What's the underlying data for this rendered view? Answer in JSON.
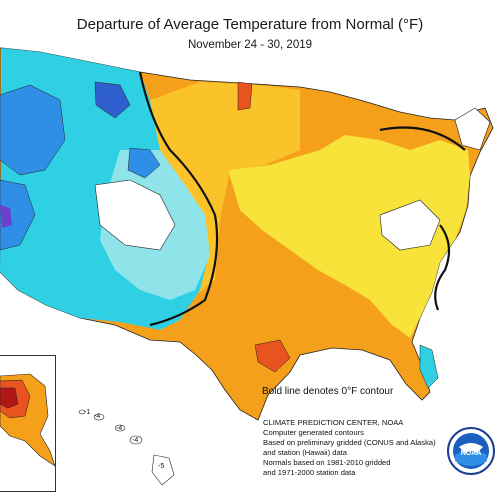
{
  "header": {
    "title": "Departure of Average Temperature from Normal (°F)",
    "date_range": "November 24 - 30, 2019"
  },
  "map": {
    "note": "Bold line denotes 0°F contour",
    "colors": {
      "dark_red": "#b01818",
      "red_orange": "#e8531f",
      "orange": "#f5a01a",
      "light_orange": "#fbc32a",
      "yellow": "#f7e33a",
      "white": "#ffffff",
      "light_cyan": "#8fe4ea",
      "cyan": "#2fd0e3",
      "blue": "#2f8fe6",
      "dark_blue": "#2f5fcf",
      "purple": "#6b3fd0"
    },
    "hawaii_labels": [
      "-1",
      "-4",
      "-4",
      "-4",
      "-5"
    ]
  },
  "credits": [
    "CLIMATE PREDICTION CENTER, NOAA",
    "Computer generated contours",
    "Based on preliminary gridded (CONUS and Alaska)",
    "   and station (Hawaii) data",
    "Normals based on 1981-2010 gridded",
    "   and 1971-2000 station data"
  ],
  "logo": {
    "text": "NOAA"
  }
}
